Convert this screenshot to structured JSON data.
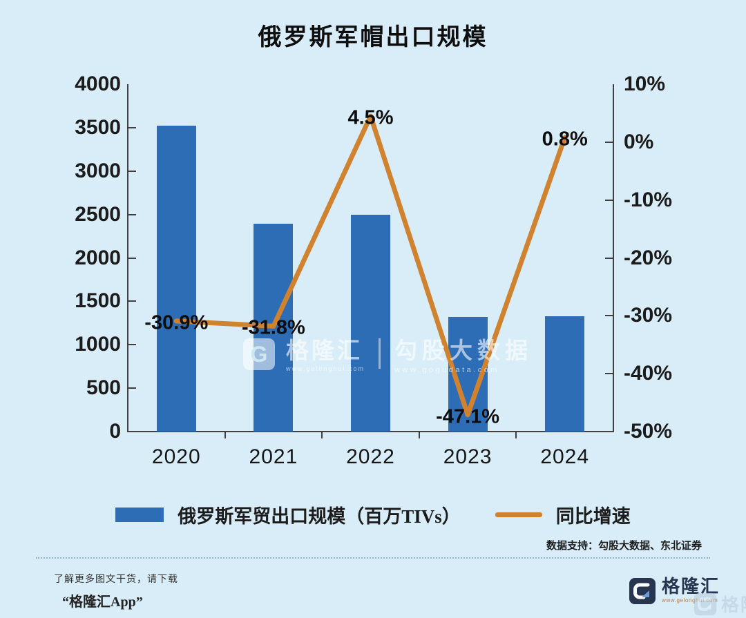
{
  "title": "俄罗斯军帽出口规模",
  "chart_data": {
    "type": "bar",
    "title": "俄罗斯军帽出口规模",
    "categories": [
      "2020",
      "2021",
      "2022",
      "2023",
      "2024"
    ],
    "series": [
      {
        "name": "俄罗斯军贸出口规模（百万TIVs）",
        "type": "bar",
        "axis": "left",
        "color": "#2d6db6",
        "values": [
          3520,
          2390,
          2500,
          1320,
          1330
        ]
      },
      {
        "name": "同比增速",
        "type": "line",
        "axis": "right",
        "color": "#d1822f",
        "values": [
          -30.9,
          -31.8,
          4.5,
          -47.1,
          0.8
        ],
        "point_labels": [
          "-30.9%",
          "-31.8%",
          "4.5%",
          "-47.1%",
          "0.8%"
        ]
      }
    ],
    "left_axis": {
      "min": 0,
      "max": 4000,
      "tick_labels": [
        "4000",
        "3500",
        "3000",
        "2500",
        "2000",
        "1500",
        "1000",
        "500",
        "0"
      ]
    },
    "right_axis": {
      "min": -50,
      "max": 10,
      "tick_labels": [
        "10%",
        "0%",
        "-10%",
        "-20%",
        "-30%",
        "-40%",
        "-50%"
      ]
    },
    "grid": false,
    "legend_position": "bottom"
  },
  "watermark_center": {
    "brand_initial": "G",
    "brand": "格隆汇",
    "brand_url": "www.gelonghui.com",
    "partner": "勾股大数据",
    "partner_url": "www.gogudata.com"
  },
  "footer": {
    "data_support": "数据支持：勾股大数据、东北证券",
    "promo_line1": "了解更多图文干货，请下载",
    "promo_line2": "“格隆汇App”",
    "brand": "格隆汇",
    "brand_url": "www.gelonghui.com"
  },
  "colors": {
    "background": "#d8edf8",
    "bar": "#2d6db6",
    "line": "#d1822f",
    "axis": "#3f3f3f",
    "brand_navy": "#273550",
    "brand_url_orange": "#c1793b"
  }
}
